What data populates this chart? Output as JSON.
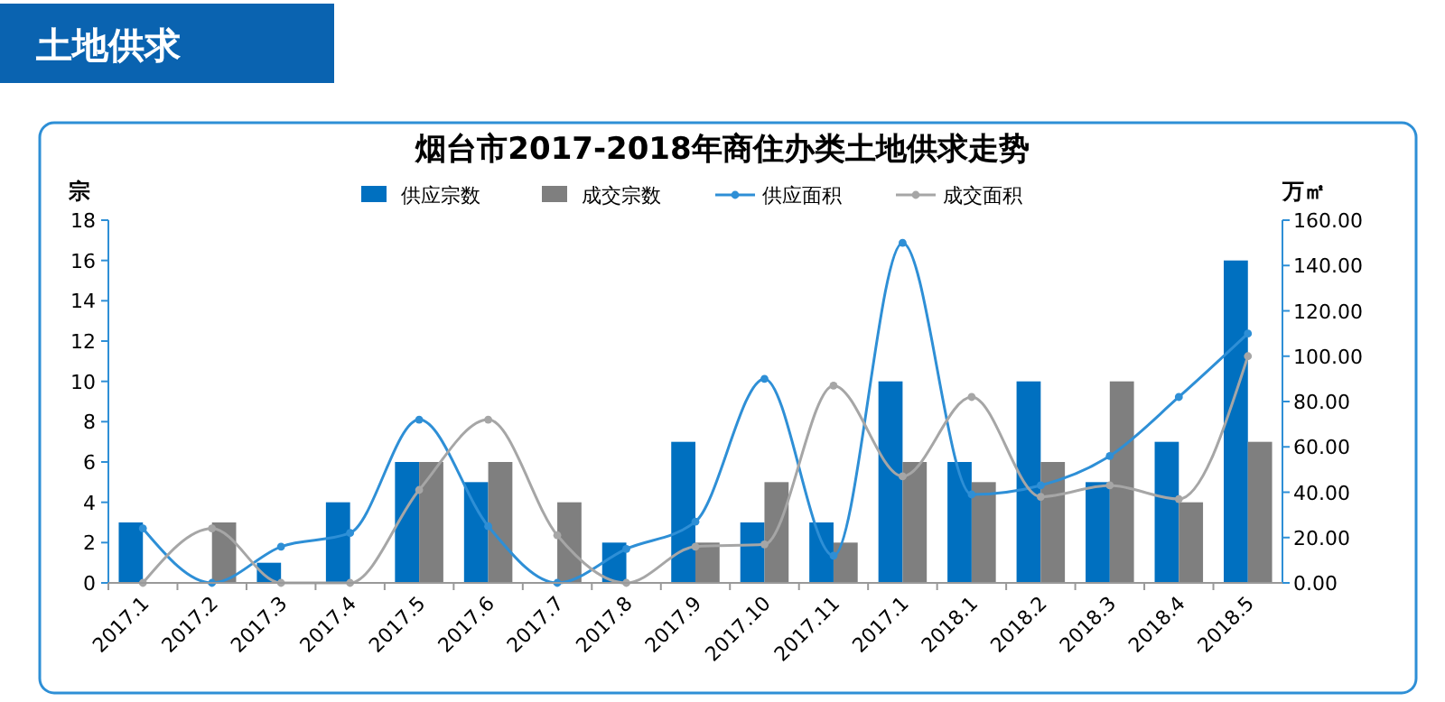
{
  "chart_data": {
    "type": "bar",
    "title": "烟台市2017-2018年商住办类土地供求走势",
    "ylabel": "宗",
    "y2label": "万㎡",
    "annotations": [
      "土地供求"
    ],
    "categories": [
      "2017.1",
      "2017.2",
      "2017.3",
      "2017.4",
      "2017.5",
      "2017.6",
      "2017.7",
      "2017.8",
      "2017.9",
      "2017.10",
      "2017.11",
      "2017.1",
      "2018.1",
      "2018.2",
      "2018.3",
      "2018.4",
      "2018.5"
    ],
    "series": [
      {
        "name": "供应宗数",
        "color": "#0070c0",
        "values": [
          3,
          0,
          1,
          4,
          6,
          5,
          0,
          2,
          7,
          3,
          3,
          10,
          6,
          10,
          5,
          7,
          16
        ]
      },
      {
        "name": "成交宗数",
        "color": "#7f7f7f",
        "values": [
          0,
          3,
          0,
          0,
          6,
          6,
          4,
          0,
          2,
          5,
          2,
          6,
          5,
          6,
          10,
          4,
          7
        ]
      },
      {
        "name": "供应面积",
        "type": "line",
        "axis": "y2",
        "color": "#2e8fd6",
        "marker": "circle",
        "values": [
          24,
          0,
          16,
          22,
          72,
          25,
          0,
          15,
          27,
          90,
          12,
          150,
          39,
          43,
          56,
          82,
          110
        ]
      },
      {
        "name": "成交面积",
        "type": "line",
        "axis": "y2",
        "color": "#a6a6a6",
        "marker": "circle",
        "values": [
          0,
          24,
          0,
          0,
          41,
          72,
          21,
          0,
          16,
          17,
          87,
          47,
          82,
          38,
          43,
          37,
          100
        ]
      }
    ],
    "ylim": [
      0,
      18
    ],
    "yticks": [
      0,
      2,
      4,
      6,
      8,
      10,
      12,
      14,
      16,
      18
    ],
    "y2lim": [
      0,
      160
    ],
    "y2ticks": [
      {
        "value": 0,
        "label": "0.00"
      },
      {
        "value": 20,
        "label": "20.00"
      },
      {
        "value": 40,
        "label": "40.00"
      },
      {
        "value": 60,
        "label": "60.00"
      },
      {
        "value": 80,
        "label": "80.00"
      },
      {
        "value": 100,
        "label": "100.00"
      },
      {
        "value": 120,
        "label": "120.00"
      },
      {
        "value": 140,
        "label": "140.00"
      },
      {
        "value": 160,
        "label": "160.00"
      }
    ],
    "grid": false,
    "legend": "top"
  }
}
